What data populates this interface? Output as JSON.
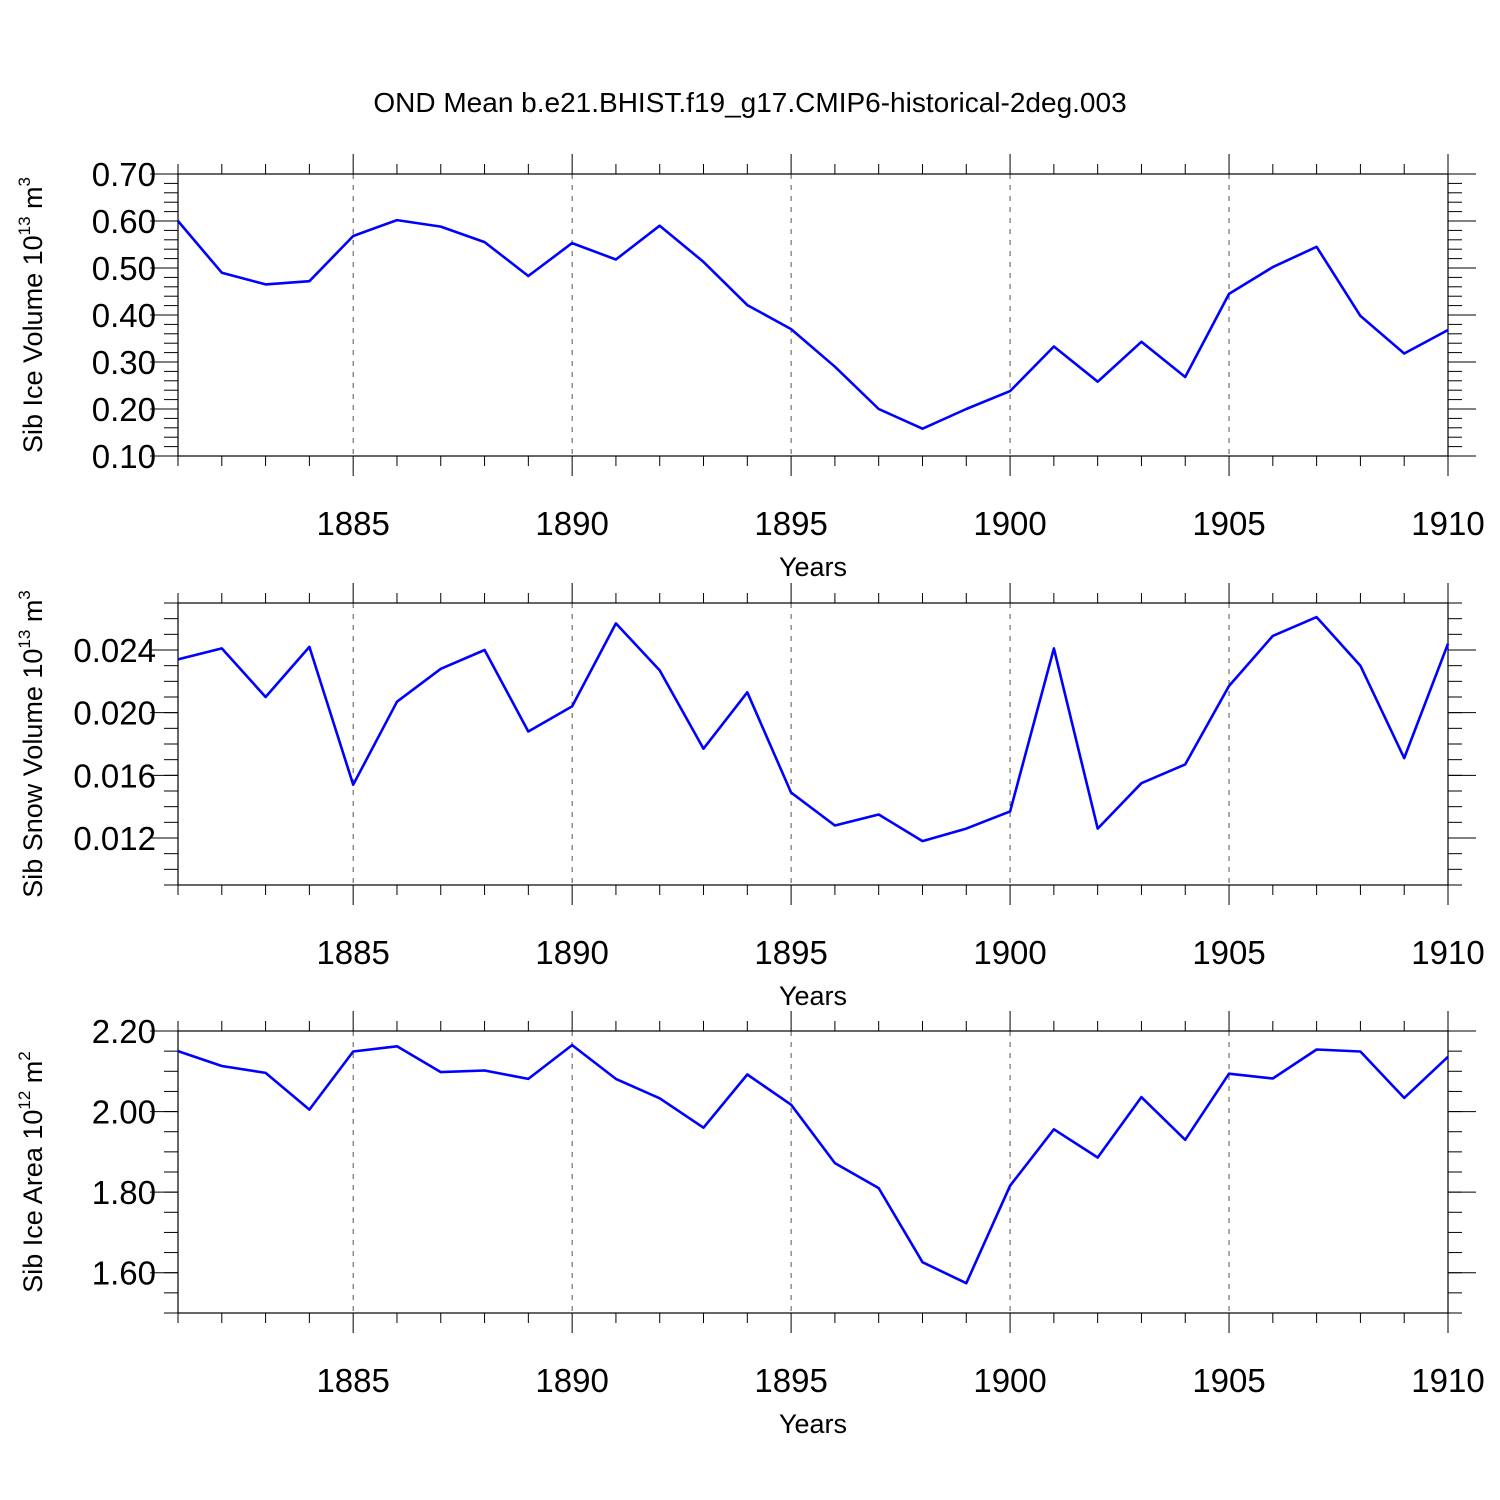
{
  "title": "OND Mean b.e21.BHIST.f19_g17.CMIP6-historical-2deg.003",
  "colors": {
    "line": "#0000ff",
    "axis": "#000000",
    "grid": "#555555"
  },
  "chart_data": [
    {
      "type": "line",
      "ylabel": "Sib Ice Volume 10",
      "ylabel_exp": "13",
      "ylabel_unit": " m",
      "ylabel_unit_exp": "3",
      "xlabel": "Years",
      "xlim": [
        1881,
        1910
      ],
      "ylim": [
        0.1,
        0.7
      ],
      "yticks": [
        0.1,
        0.2,
        0.3,
        0.4,
        0.5,
        0.6,
        0.7
      ],
      "ytick_labels": [
        "0.10",
        "0.20",
        "0.30",
        "0.40",
        "0.50",
        "0.60",
        "0.70"
      ],
      "yminor_step": 0.02,
      "xticks": [
        1885,
        1890,
        1895,
        1900,
        1905,
        1910
      ],
      "xtick_labels": [
        "1885",
        "1890",
        "1895",
        "1900",
        "1905",
        "1910"
      ],
      "x": [
        1881,
        1882,
        1883,
        1884,
        1885,
        1886,
        1887,
        1888,
        1889,
        1890,
        1891,
        1892,
        1893,
        1894,
        1895,
        1896,
        1897,
        1898,
        1899,
        1900,
        1901,
        1902,
        1903,
        1904,
        1905,
        1906,
        1907,
        1908,
        1909,
        1910
      ],
      "values": [
        0.6,
        0.49,
        0.465,
        0.472,
        0.568,
        0.602,
        0.588,
        0.555,
        0.483,
        0.553,
        0.518,
        0.59,
        0.513,
        0.421,
        0.37,
        0.29,
        0.2,
        0.158,
        0.2,
        0.238,
        0.333,
        0.258,
        0.343,
        0.268,
        0.445,
        0.502,
        0.545,
        0.398,
        0.318,
        0.368
      ]
    },
    {
      "type": "line",
      "ylabel": "Sib Snow Volume 10",
      "ylabel_exp": "13",
      "ylabel_unit": " m",
      "ylabel_unit_exp": "3",
      "xlabel": "Years",
      "xlim": [
        1881,
        1910
      ],
      "ylim": [
        0.009,
        0.027
      ],
      "yticks": [
        0.012,
        0.016,
        0.02,
        0.024
      ],
      "ytick_labels": [
        "0.012",
        "0.016",
        "0.020",
        "0.024"
      ],
      "yminor_step": 0.001,
      "xticks": [
        1885,
        1890,
        1895,
        1900,
        1905,
        1910
      ],
      "xtick_labels": [
        "1885",
        "1890",
        "1895",
        "1900",
        "1905",
        "1910"
      ],
      "x": [
        1881,
        1882,
        1883,
        1884,
        1885,
        1886,
        1887,
        1888,
        1889,
        1890,
        1891,
        1892,
        1893,
        1894,
        1895,
        1896,
        1897,
        1898,
        1899,
        1900,
        1901,
        1902,
        1903,
        1904,
        1905,
        1906,
        1907,
        1908,
        1909,
        1910
      ],
      "values": [
        0.0234,
        0.0241,
        0.021,
        0.0242,
        0.0154,
        0.0207,
        0.0228,
        0.024,
        0.0188,
        0.0204,
        0.0257,
        0.0227,
        0.0177,
        0.0213,
        0.0149,
        0.0128,
        0.0135,
        0.0118,
        0.0126,
        0.0137,
        0.0241,
        0.0126,
        0.0155,
        0.0167,
        0.0217,
        0.0249,
        0.0261,
        0.023,
        0.0171,
        0.0244
      ]
    },
    {
      "type": "line",
      "ylabel": "Sib Ice Area 10",
      "ylabel_exp": "12",
      "ylabel_unit": " m",
      "ylabel_unit_exp": "2",
      "xlabel": "Years",
      "xlim": [
        1881,
        1910
      ],
      "ylim": [
        1.5,
        2.2
      ],
      "yticks": [
        1.6,
        1.8,
        2.0,
        2.2
      ],
      "ytick_labels": [
        "1.60",
        "1.80",
        "2.00",
        "2.20"
      ],
      "yminor_step": 0.05,
      "xticks": [
        1885,
        1890,
        1895,
        1900,
        1905,
        1910
      ],
      "xtick_labels": [
        "1885",
        "1890",
        "1895",
        "1900",
        "1905",
        "1910"
      ],
      "x": [
        1881,
        1882,
        1883,
        1884,
        1885,
        1886,
        1887,
        1888,
        1889,
        1890,
        1891,
        1892,
        1893,
        1894,
        1895,
        1896,
        1897,
        1898,
        1899,
        1900,
        1901,
        1902,
        1903,
        1904,
        1905,
        1906,
        1907,
        1908,
        1909,
        1910
      ],
      "values": [
        2.15,
        2.113,
        2.096,
        2.005,
        2.149,
        2.162,
        2.098,
        2.102,
        2.081,
        2.165,
        2.081,
        2.033,
        1.96,
        2.092,
        2.017,
        1.872,
        1.81,
        1.626,
        1.574,
        1.816,
        1.956,
        1.886,
        2.036,
        1.93,
        2.094,
        2.082,
        2.154,
        2.149,
        2.034,
        2.136
      ]
    }
  ]
}
